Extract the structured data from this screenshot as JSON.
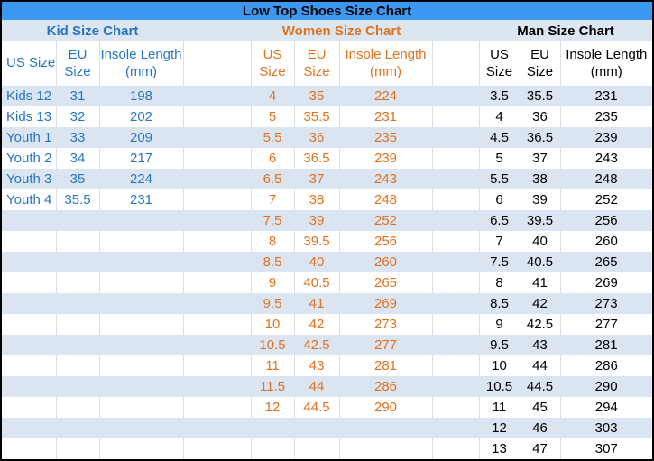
{
  "title": "Low Top Shoes Size Chart",
  "colors": {
    "title_bg": "#3b99f2",
    "section_header_bg": "#dce6f1",
    "row_stripe_bg": "#dbe5f1",
    "kid_text": "#2776c4",
    "women_text": "#e2711c",
    "man_text": "#000000",
    "grid_line": "#d8dfe9",
    "outer_border": "#000000"
  },
  "sections": {
    "kid": {
      "label": "Kid Size Chart"
    },
    "women": {
      "label": "Women Size Chart"
    },
    "man": {
      "label": "Man Size Chart"
    }
  },
  "column_headers": {
    "kid": {
      "us": "US Size",
      "eu_line1": "EU",
      "eu_line2": "Size",
      "insole_line1": "Insole Length",
      "insole_line2": "(mm)"
    },
    "women": {
      "us_line1": "US",
      "us_line2": "Size",
      "eu_line1": "EU",
      "eu_line2": "Size",
      "insole_line1": "Insole Length",
      "insole_line2": "(mm)"
    },
    "man": {
      "us_line1": "US",
      "us_line2": "Size",
      "eu_line1": "EU",
      "eu_line2": "Size",
      "insole_line1": "Insole Length",
      "insole_line2": "(mm)"
    }
  },
  "rows": [
    {
      "kid": [
        "Kids 12",
        "31",
        "198"
      ],
      "women": [
        "4",
        "35",
        "224"
      ],
      "man": [
        "3.5",
        "35.5",
        "231"
      ]
    },
    {
      "kid": [
        "Kids 13",
        "32",
        "202"
      ],
      "women": [
        "5",
        "35.5",
        "231"
      ],
      "man": [
        "4",
        "36",
        "235"
      ]
    },
    {
      "kid": [
        "Youth 1",
        "33",
        "209"
      ],
      "women": [
        "5.5",
        "36",
        "235"
      ],
      "man": [
        "4.5",
        "36.5",
        "239"
      ]
    },
    {
      "kid": [
        "Youth 2",
        "34",
        "217"
      ],
      "women": [
        "6",
        "36.5",
        "239"
      ],
      "man": [
        "5",
        "37",
        "243"
      ]
    },
    {
      "kid": [
        "Youth 3",
        "35",
        "224"
      ],
      "women": [
        "6.5",
        "37",
        "243"
      ],
      "man": [
        "5.5",
        "38",
        "248"
      ]
    },
    {
      "kid": [
        "Youth 4",
        "35.5",
        "231"
      ],
      "women": [
        "7",
        "38",
        "248"
      ],
      "man": [
        "6",
        "39",
        "252"
      ]
    },
    {
      "kid": [
        "",
        "",
        ""
      ],
      "women": [
        "7.5",
        "39",
        "252"
      ],
      "man": [
        "6.5",
        "39.5",
        "256"
      ]
    },
    {
      "kid": [
        "",
        "",
        ""
      ],
      "women": [
        "8",
        "39.5",
        "256"
      ],
      "man": [
        "7",
        "40",
        "260"
      ]
    },
    {
      "kid": [
        "",
        "",
        ""
      ],
      "women": [
        "8.5",
        "40",
        "260"
      ],
      "man": [
        "7.5",
        "40.5",
        "265"
      ]
    },
    {
      "kid": [
        "",
        "",
        ""
      ],
      "women": [
        "9",
        "40.5",
        "265"
      ],
      "man": [
        "8",
        "41",
        "269"
      ]
    },
    {
      "kid": [
        "",
        "",
        ""
      ],
      "women": [
        "9.5",
        "41",
        "269"
      ],
      "man": [
        "8.5",
        "42",
        "273"
      ]
    },
    {
      "kid": [
        "",
        "",
        ""
      ],
      "women": [
        "10",
        "42",
        "273"
      ],
      "man": [
        "9",
        "42.5",
        "277"
      ]
    },
    {
      "kid": [
        "",
        "",
        ""
      ],
      "women": [
        "10.5",
        "42.5",
        "277"
      ],
      "man": [
        "9.5",
        "43",
        "281"
      ]
    },
    {
      "kid": [
        "",
        "",
        ""
      ],
      "women": [
        "11",
        "43",
        "281"
      ],
      "man": [
        "10",
        "44",
        "286"
      ]
    },
    {
      "kid": [
        "",
        "",
        ""
      ],
      "women": [
        "11.5",
        "44",
        "286"
      ],
      "man": [
        "10.5",
        "44.5",
        "290"
      ]
    },
    {
      "kid": [
        "",
        "",
        ""
      ],
      "women": [
        "12",
        "44.5",
        "290"
      ],
      "man": [
        "11",
        "45",
        "294"
      ]
    },
    {
      "kid": [
        "",
        "",
        ""
      ],
      "women": [
        "",
        "",
        ""
      ],
      "man": [
        "12",
        "46",
        "303"
      ]
    },
    {
      "kid": [
        "",
        "",
        ""
      ],
      "women": [
        "",
        "",
        ""
      ],
      "man": [
        "13",
        "47",
        "307"
      ]
    }
  ],
  "chart_data": {
    "type": "table",
    "title": "Low Top Shoes Size Chart",
    "sections": [
      {
        "name": "Kid Size Chart",
        "columns": [
          "US Size",
          "EU Size",
          "Insole Length (mm)"
        ],
        "rows": [
          [
            "Kids 12",
            31,
            198
          ],
          [
            "Kids 13",
            32,
            202
          ],
          [
            "Youth 1",
            33,
            209
          ],
          [
            "Youth 2",
            34,
            217
          ],
          [
            "Youth 3",
            35,
            224
          ],
          [
            "Youth 4",
            35.5,
            231
          ]
        ]
      },
      {
        "name": "Women Size Chart",
        "columns": [
          "US Size",
          "EU Size",
          "Insole Length (mm)"
        ],
        "rows": [
          [
            4,
            35,
            224
          ],
          [
            5,
            35.5,
            231
          ],
          [
            5.5,
            36,
            235
          ],
          [
            6,
            36.5,
            239
          ],
          [
            6.5,
            37,
            243
          ],
          [
            7,
            38,
            248
          ],
          [
            7.5,
            39,
            252
          ],
          [
            8,
            39.5,
            256
          ],
          [
            8.5,
            40,
            260
          ],
          [
            9,
            40.5,
            265
          ],
          [
            9.5,
            41,
            269
          ],
          [
            10,
            42,
            273
          ],
          [
            10.5,
            42.5,
            277
          ],
          [
            11,
            43,
            281
          ],
          [
            11.5,
            44,
            286
          ],
          [
            12,
            44.5,
            290
          ]
        ]
      },
      {
        "name": "Man Size Chart",
        "columns": [
          "US Size",
          "EU Size",
          "Insole Length (mm)"
        ],
        "rows": [
          [
            3.5,
            35.5,
            231
          ],
          [
            4,
            36,
            235
          ],
          [
            4.5,
            36.5,
            239
          ],
          [
            5,
            37,
            243
          ],
          [
            5.5,
            38,
            248
          ],
          [
            6,
            39,
            252
          ],
          [
            6.5,
            39.5,
            256
          ],
          [
            7,
            40,
            260
          ],
          [
            7.5,
            40.5,
            265
          ],
          [
            8,
            41,
            269
          ],
          [
            8.5,
            42,
            273
          ],
          [
            9,
            42.5,
            277
          ],
          [
            9.5,
            43,
            281
          ],
          [
            10,
            44,
            286
          ],
          [
            10.5,
            44.5,
            290
          ],
          [
            11,
            45,
            294
          ],
          [
            12,
            46,
            303
          ],
          [
            13,
            47,
            307
          ]
        ]
      }
    ]
  }
}
